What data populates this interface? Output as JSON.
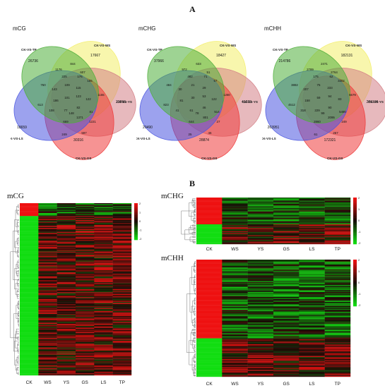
{
  "panel_a_label": "A",
  "panel_b_label": "B",
  "venn": [
    {
      "title": "mCG",
      "sets": [
        "CK-VS-TP",
        "CK-VS-WS",
        "CK-VS-YS",
        "CK-VS-GS",
        "IK-VS-LS"
      ],
      "unique": [
        "26736",
        "17667",
        "23896",
        "30316",
        "18659"
      ],
      "regions": [
        "1176",
        "844",
        "607",
        "225",
        "176",
        "760",
        "143",
        "109",
        "115",
        "155",
        "1155",
        "186",
        "101",
        "123",
        "122",
        "613",
        "108",
        "77",
        "82",
        "81",
        "1371",
        "669",
        "249",
        "597",
        "1221",
        "148"
      ]
    },
    {
      "title": "mCHG",
      "sets": [
        "CK-VS-TP",
        "CK-VS-WS",
        "CK-VS-YS",
        "CK-VS-GS",
        "CK-VS-LS"
      ],
      "unique": [
        "37966",
        "18427",
        "41223",
        "28874",
        "20490"
      ],
      "regions": [
        "972",
        "633",
        "51",
        "482",
        "71",
        "484",
        "30",
        "21",
        "29",
        "57",
        "1280",
        "81",
        "30",
        "53",
        "122",
        "823",
        "41",
        "61",
        "46",
        "514",
        "801",
        "644",
        "25",
        "46",
        "27",
        "78"
      ]
    },
    {
      "title": "mCHH",
      "sets": [
        "CK-VS-TP",
        "CK-VS-WS",
        "CK-VS-YS",
        "CK-VS-GS",
        "CK-VS-LS"
      ],
      "unique": [
        "214786",
        "182131",
        "286106",
        "172321",
        "263951"
      ],
      "regions": [
        "2789",
        "2471",
        "2764",
        "175",
        "62",
        "3882",
        "207",
        "75",
        "233",
        "3302",
        "6679",
        "158",
        "59",
        "94",
        "83",
        "4512",
        "318",
        "229",
        "90",
        "5490",
        "2095",
        "2860",
        "61",
        "267",
        "249",
        "99"
      ]
    }
  ],
  "heatmaps": [
    {
      "title": "mCG",
      "columns": [
        "CK",
        "WS",
        "YS",
        "GS",
        "LS",
        "TP"
      ],
      "scale_labels": [
        "2",
        "1",
        "0",
        "-1",
        "-2"
      ],
      "colors": {
        "high": "#ee1111",
        "mid": "#150b05",
        "low": "#11dd11"
      }
    },
    {
      "title": "mCHG",
      "columns": [
        "CK",
        "WS",
        "YS",
        "GS",
        "LS",
        "TP"
      ],
      "scale_labels": [
        "2",
        "1",
        "0",
        "-1",
        "-2"
      ],
      "colors": {
        "high": "#ee1111",
        "mid": "#150b05",
        "low": "#11dd11"
      }
    },
    {
      "title": "mCHH",
      "columns": [
        "CK",
        "WS",
        "YS",
        "GS",
        "LS",
        "TP"
      ],
      "scale_labels": [
        "2",
        "1",
        "0",
        "-1",
        "-2"
      ],
      "colors": {
        "high": "#ee1111",
        "mid": "#150b05",
        "low": "#11dd11"
      }
    }
  ]
}
